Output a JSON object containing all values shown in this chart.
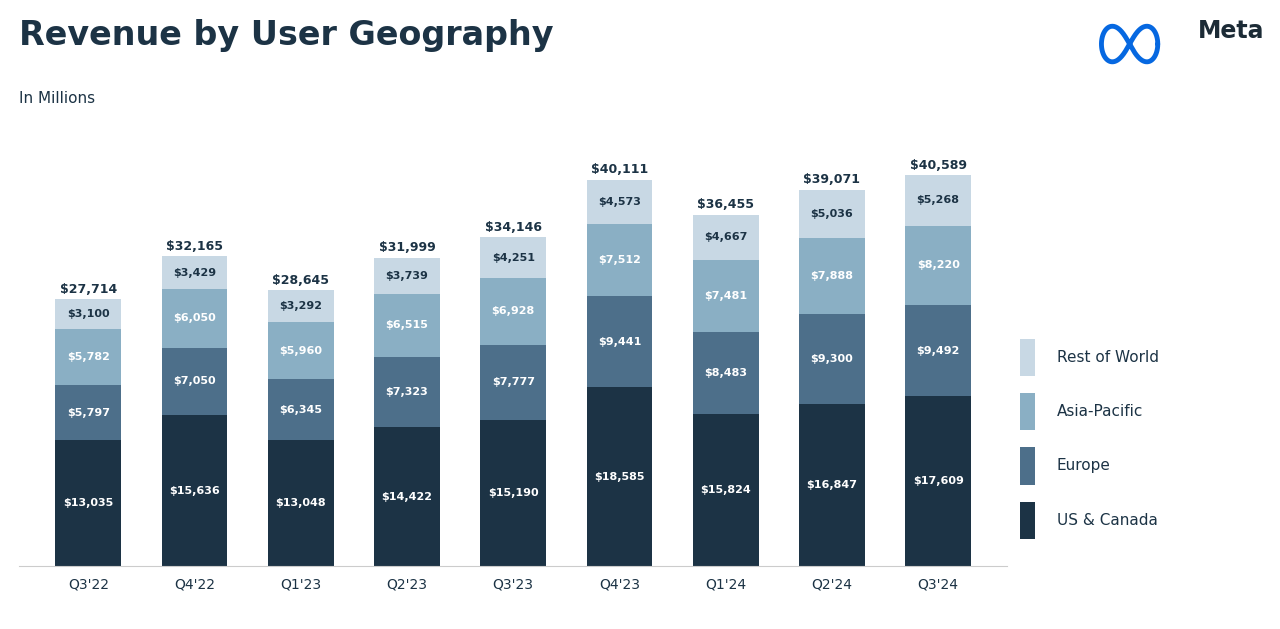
{
  "title": "Revenue by User Geography",
  "subtitle": "In Millions",
  "categories": [
    "Q3'22",
    "Q4'22",
    "Q1'23",
    "Q2'23",
    "Q3'23",
    "Q4'23",
    "Q1'24",
    "Q2'24",
    "Q3'24"
  ],
  "us_canada": [
    13035,
    15636,
    13048,
    14422,
    15190,
    18585,
    15824,
    16847,
    17609
  ],
  "europe": [
    5797,
    7050,
    6345,
    7323,
    7777,
    9441,
    8483,
    9300,
    9492
  ],
  "asia_pacific": [
    5782,
    6050,
    5960,
    6515,
    6928,
    7512,
    7481,
    7888,
    8220
  ],
  "rest_world": [
    3100,
    3429,
    3292,
    3739,
    4251,
    4573,
    4667,
    5036,
    5268
  ],
  "totals": [
    27714,
    32165,
    28645,
    31999,
    34146,
    40111,
    36455,
    39071,
    40589
  ],
  "color_us_canada": "#1c3345",
  "color_europe": "#4d6f8a",
  "color_asia_pacific": "#8aafc4",
  "color_rest_world": "#c8d8e4",
  "background_color": "#ffffff",
  "title_color": "#1c3345",
  "text_color_dark": "#1c3345",
  "text_color_white": "#ffffff",
  "text_color_rw": "#5a7a90",
  "legend_labels": [
    "Rest of World",
    "Asia-Pacific",
    "Europe",
    "US & Canada"
  ],
  "meta_text_color": "#1c2b36",
  "meta_logo_color": "#0668E1",
  "bar_width": 0.62,
  "ylim_max": 47000,
  "label_fontsize": 8.0,
  "total_fontsize": 9.0,
  "title_fontsize": 24,
  "subtitle_fontsize": 11,
  "xtick_fontsize": 10,
  "legend_fontsize": 11
}
